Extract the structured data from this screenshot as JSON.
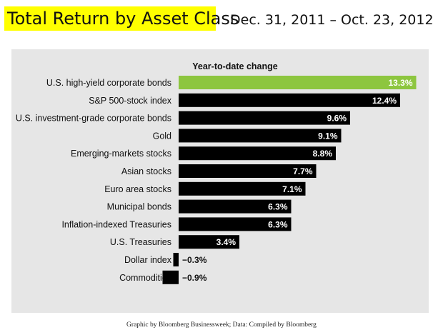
{
  "title": "Total Return by Asset Class",
  "subtitle": "Dec. 31, 2011 – Oct. 23, 2012",
  "credit": "Graphic by Bloomberg Businessweek; Data: Compiled by Bloomberg",
  "colors": {
    "highlight_bar": "#8dc63f",
    "bar": "#000000",
    "panel": "#e6e6e6",
    "title_highlight": "#ffff00"
  },
  "chart_data": {
    "type": "bar",
    "orientation": "horizontal",
    "header": "Year-to-date change",
    "categories": [
      "U.S. high-yield corporate bonds",
      "S&P 500-stock index",
      "U.S. investment-grade corporate bonds",
      "Gold",
      "Emerging-markets stocks",
      "Asian stocks",
      "Euro area stocks",
      "Municipal bonds",
      "Inflation-indexed Treasuries",
      "U.S. Treasuries",
      "Dollar index",
      "Commodities"
    ],
    "values": [
      13.3,
      12.4,
      9.6,
      9.1,
      8.8,
      7.7,
      7.1,
      6.3,
      6.3,
      3.4,
      -0.3,
      -0.9
    ],
    "labels": [
      "13.3%",
      "12.4%",
      "9.6%",
      "9.1%",
      "8.8%",
      "7.7%",
      "7.1%",
      "6.3%",
      "6.3%",
      "3.4%",
      "−0.3%",
      "−0.9%"
    ],
    "unit": "%",
    "highlight_index": 0
  }
}
